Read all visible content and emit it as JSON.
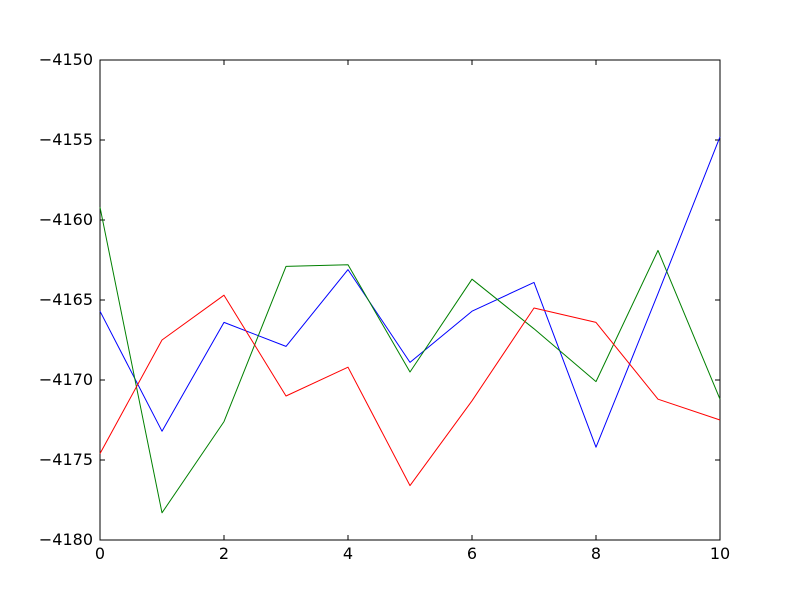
{
  "figure": {
    "background": "#ffffff",
    "title": ""
  },
  "chart_data": {
    "type": "line",
    "title": "",
    "xlabel": "",
    "ylabel": "",
    "x": [
      0,
      1,
      2,
      3,
      4,
      5,
      6,
      7,
      8,
      9,
      10
    ],
    "series": [
      {
        "name": "blue",
        "color": "#0000ff",
        "values": [
          -4165.7,
          -4173.2,
          -4166.4,
          -4167.9,
          -4163.1,
          -4168.9,
          -4165.7,
          -4163.9,
          -4174.2,
          -4164.6,
          -4154.8
        ]
      },
      {
        "name": "green",
        "color": "#008000",
        "values": [
          -4159.2,
          -4178.3,
          -4172.6,
          -4162.9,
          -4162.8,
          -4169.5,
          -4163.7,
          -4166.8,
          -4170.1,
          -4161.9,
          -4171.2
        ]
      },
      {
        "name": "red",
        "color": "#ff0000",
        "values": [
          -4174.6,
          -4167.5,
          -4164.7,
          -4171.0,
          -4169.2,
          -4176.6,
          -4171.3,
          -4165.5,
          -4166.4,
          -4171.2,
          -4172.5
        ]
      }
    ],
    "xlim": [
      0,
      10
    ],
    "ylim": [
      -4180,
      -4150
    ],
    "xticks": [
      0,
      2,
      4,
      6,
      8,
      10
    ],
    "xtick_labels": [
      "0",
      "2",
      "4",
      "6",
      "8",
      "10"
    ],
    "yticks": [
      -4180,
      -4175,
      -4170,
      -4165,
      -4160,
      -4155,
      -4150
    ],
    "ytick_labels": [
      "−4180",
      "−4175",
      "−4170",
      "−4165",
      "−4160",
      "−4155",
      "−4150"
    ],
    "grid": false,
    "legend": null,
    "axis_color": "#000000",
    "line_width": 1,
    "tick_direction": "in",
    "ticks_all_sides": true
  }
}
